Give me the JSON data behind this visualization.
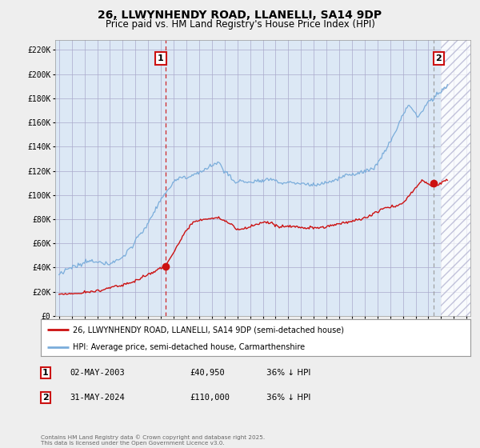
{
  "title": "26, LLWYNHENDY ROAD, LLANELLI, SA14 9DP",
  "subtitle": "Price paid vs. HM Land Registry's House Price Index (HPI)",
  "title_fontsize": 10,
  "subtitle_fontsize": 8.5,
  "ylabel_ticks": [
    "£0",
    "£20K",
    "£40K",
    "£60K",
    "£80K",
    "£100K",
    "£120K",
    "£140K",
    "£160K",
    "£180K",
    "£200K",
    "£220K"
  ],
  "ytick_values": [
    0,
    20000,
    40000,
    60000,
    80000,
    100000,
    120000,
    140000,
    160000,
    180000,
    200000,
    220000
  ],
  "ylim": [
    0,
    228000
  ],
  "xlim_start": 1994.7,
  "xlim_end": 2027.3,
  "xtick_years": [
    1995,
    1996,
    1997,
    1998,
    1999,
    2000,
    2001,
    2002,
    2003,
    2004,
    2005,
    2006,
    2007,
    2008,
    2009,
    2010,
    2011,
    2012,
    2013,
    2014,
    2015,
    2016,
    2017,
    2018,
    2019,
    2020,
    2021,
    2022,
    2023,
    2024,
    2025,
    2026,
    2027
  ],
  "hpi_color": "#7aaddb",
  "price_color": "#cc1111",
  "dashed_line1_x": 2003.34,
  "dashed_line2_x": 2024.42,
  "marker1_x": 2003.34,
  "marker1_y": 40950,
  "marker2_x": 2024.42,
  "marker2_y": 110000,
  "legend_line1": "26, LLWYNHENDY ROAD, LLANELLI, SA14 9DP (semi-detached house)",
  "legend_line2": "HPI: Average price, semi-detached house, Carmarthenshire",
  "table_row1": [
    "1",
    "02-MAY-2003",
    "£40,950",
    "36% ↓ HPI"
  ],
  "table_row2": [
    "2",
    "31-MAY-2024",
    "£110,000",
    "36% ↓ HPI"
  ],
  "footer": "Contains HM Land Registry data © Crown copyright and database right 2025.\nThis data is licensed under the Open Government Licence v3.0.",
  "bg_color": "#eeeeee",
  "plot_bg_color": "#dce8f5",
  "grid_color": "#aaaacc"
}
